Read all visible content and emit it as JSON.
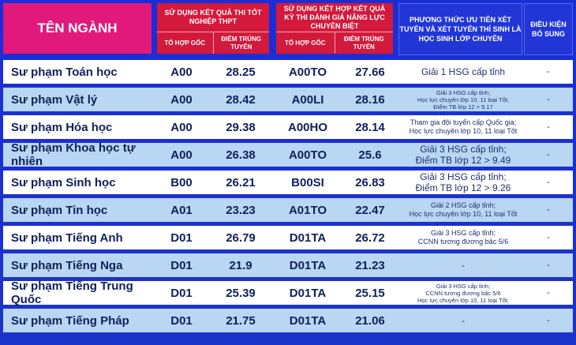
{
  "header": {
    "ten_nganh": "TÊN NGÀNH",
    "group1_title": "SỬ DỤNG KẾT QUẢ THI TỐT NGHIỆP THPT",
    "group1_sub1": "TỔ HỢP GỐC",
    "group1_sub2": "ĐIỂM TRÚNG TUYỂN",
    "group2_title": "SỬ DỤNG KẾT HỢP KẾT QUẢ KỲ THI ĐÁNH GIÁ NĂNG LỰC CHUYÊN BIỆT",
    "group2_sub1": "TỔ HỢP GỐC",
    "group2_sub2": "ĐIỂM TRÚNG TUYỂN",
    "uu_tien": "PHƯƠNG THỨC ƯU TIÊN XÉT TUYỂN VÀ XÉT TUYỂN THÍ SINH LÀ HỌC SINH LỚP CHUYÊN",
    "dieu_kien": "ĐIỀU KIỆN BỔ SUNG"
  },
  "rows": [
    {
      "name": "Sư phạm Toán học",
      "to_hop_1": "A00",
      "diem_1": "28.25",
      "to_hop_2": "A00TO",
      "diem_2": "27.66",
      "uu_tien": "Giải 1 HSG cấp tỉnh",
      "dieu_kien": "-"
    },
    {
      "name": "Sư phạm Vật lý",
      "to_hop_1": "A00",
      "diem_1": "28.42",
      "to_hop_2": "A00LI",
      "diem_2": "28.16",
      "uu_tien": "Giải 3 HSG cấp tỉnh;\nHọc lực chuyên lớp 10, 11 loại Tốt;\nĐiểm TB lớp 12 > 9.17",
      "dieu_kien": "-"
    },
    {
      "name": "Sư phạm Hóa học",
      "to_hop_1": "A00",
      "diem_1": "29.38",
      "to_hop_2": "A00HO",
      "diem_2": "28.14",
      "uu_tien": "Tham gia đội tuyển cấp Quốc gia;\nHọc lực chuyên lớp 10, 11 loại Tốt",
      "dieu_kien": "-"
    },
    {
      "name": "Sư phạm Khoa học tự nhiên",
      "to_hop_1": "A00",
      "diem_1": "26.38",
      "to_hop_2": "A00TO",
      "diem_2": "25.6",
      "uu_tien": "Giải 3 HSG cấp tỉnh;\nĐiểm TB lớp 12 > 9.49",
      "dieu_kien": "-"
    },
    {
      "name": "Sư phạm Sinh học",
      "to_hop_1": "B00",
      "diem_1": "26.21",
      "to_hop_2": "B00SI",
      "diem_2": "26.83",
      "uu_tien": "Giải 3 HSG cấp tỉnh;\nĐiểm TB lớp 12 > 9.26",
      "dieu_kien": "-"
    },
    {
      "name": "Sư phạm Tin học",
      "to_hop_1": "A01",
      "diem_1": "23.23",
      "to_hop_2": "A01TO",
      "diem_2": "22.47",
      "uu_tien": "Giải 2 HSG cấp tỉnh;\nHọc lực chuyên lớp 10, 11 loại Tốt",
      "dieu_kien": "-"
    },
    {
      "name": "Sư phạm Tiếng Anh",
      "to_hop_1": "D01",
      "diem_1": "26.79",
      "to_hop_2": "D01TA",
      "diem_2": "26.72",
      "uu_tien": "Giải 3 HSG cấp tỉnh;\nCCNN tương đương bậc 5/6",
      "dieu_kien": "-"
    },
    {
      "name": "Sư phạm Tiếng Nga",
      "to_hop_1": "D01",
      "diem_1": "21.9",
      "to_hop_2": "D01TA",
      "diem_2": "21.23",
      "uu_tien": "-",
      "dieu_kien": "-"
    },
    {
      "name": "Sư phạm Tiếng Trung Quốc",
      "to_hop_1": "D01",
      "diem_1": "25.39",
      "to_hop_2": "D01TA",
      "diem_2": "25.15",
      "uu_tien": "Giải 3 HSG cấp tỉnh;\nCCNN tương đương bậc 5/6\nHọc lực chuyên lớp 10, 11 loại Tốt;",
      "dieu_kien": "-"
    },
    {
      "name": "Sư phạm Tiếng Pháp",
      "to_hop_1": "D01",
      "diem_1": "21.75",
      "to_hop_2": "D01TA",
      "diem_2": "21.06",
      "uu_tien": "-",
      "dieu_kien": "-"
    }
  ]
}
